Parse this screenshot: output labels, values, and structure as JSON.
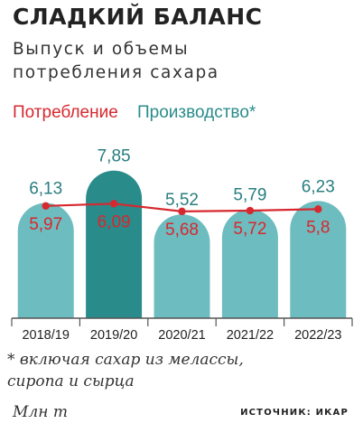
{
  "header": {
    "title": "СЛАДКИЙ БАЛАНС",
    "subtitle_line1": "Выпуск и объемы",
    "subtitle_line2": "потребления сахара"
  },
  "footer": {
    "note_line1": "* включая сахар из мелассы,",
    "note_line2": "сиропа и сырца",
    "unit": "Млн т",
    "source": "ИСТОЧНИК: ИКАР"
  },
  "colors": {
    "production_bar": "#6dbcbf",
    "production_highlight_bar": "#2a8b8b",
    "consumption_line": "#d7282f",
    "axis": "#555555"
  },
  "chart_data": {
    "type": "bar",
    "categories": [
      "2018/19",
      "2019/20",
      "2020/21",
      "2021/22",
      "2022/23"
    ],
    "highlight_index": 1,
    "ylim": [
      0,
      9
    ],
    "legend_position": "top-left",
    "grid": false,
    "series": [
      {
        "name": "Потребление",
        "type": "line",
        "values": [
          5.97,
          6.09,
          5.68,
          5.72,
          5.8
        ],
        "labels": [
          "5,97",
          "6,09",
          "5,68",
          "5,72",
          "5,8"
        ]
      },
      {
        "name": "Производство*",
        "type": "bar",
        "values": [
          6.13,
          7.85,
          5.52,
          5.79,
          6.23
        ],
        "labels": [
          "6,13",
          "7,85",
          "5,52",
          "5,79",
          "6,23"
        ]
      }
    ]
  }
}
